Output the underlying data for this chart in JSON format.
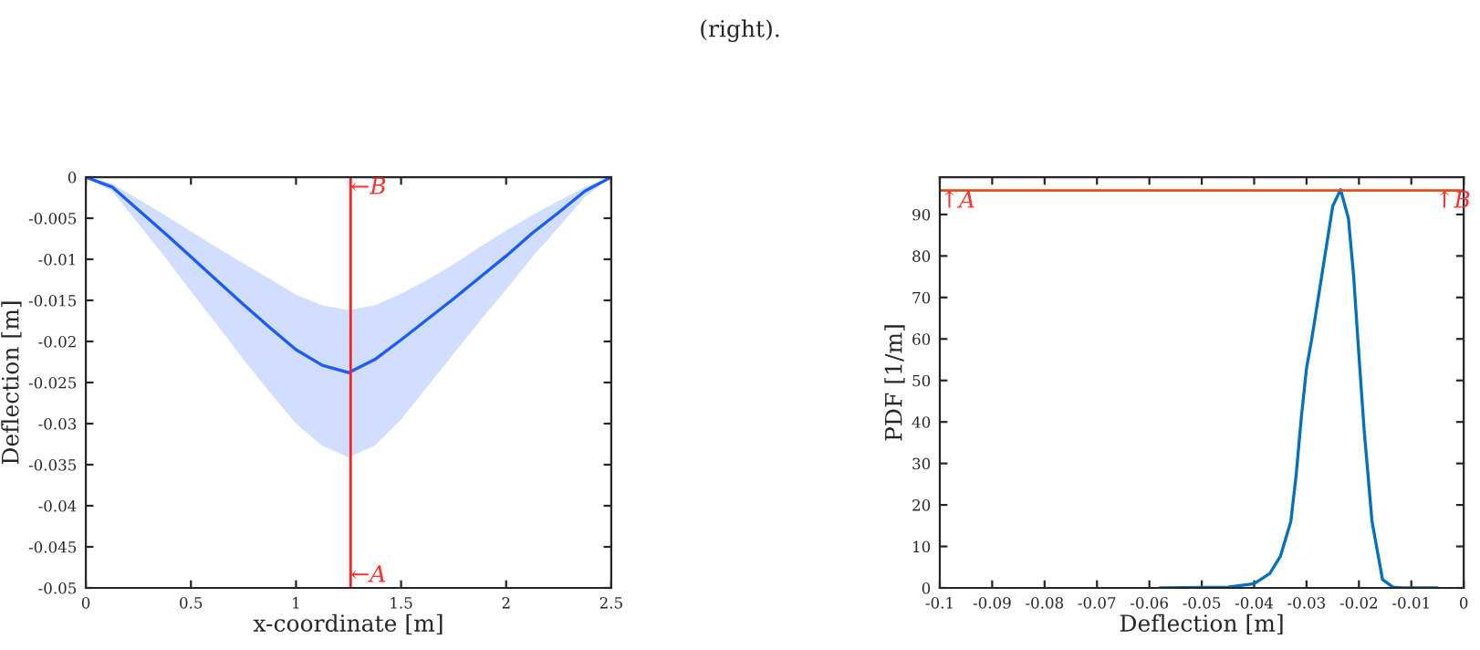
{
  "chart_data": [
    {
      "type": "line",
      "xlabel": "x-coordinate [m]",
      "ylabel": "Deflection [m]",
      "x": [
        0,
        0.125,
        0.25,
        0.375,
        0.5,
        0.625,
        0.75,
        0.875,
        1.0,
        1.125,
        1.25,
        1.375,
        1.5,
        1.625,
        1.75,
        1.875,
        2.0,
        2.125,
        2.25,
        2.375,
        2.5
      ],
      "series": [
        {
          "color": "#1a5cff",
          "values": [
            0,
            -0.0012,
            -0.004,
            -0.0068,
            -0.0097,
            -0.0126,
            -0.0155,
            -0.0183,
            -0.021,
            -0.0229,
            -0.0238,
            -0.0222,
            -0.0198,
            -0.0173,
            -0.0148,
            -0.0122,
            -0.0096,
            -0.0068,
            -0.0043,
            -0.0017,
            0
          ],
          "lower": [
            0,
            -0.0017,
            -0.0057,
            -0.0097,
            -0.0139,
            -0.018,
            -0.0222,
            -0.0262,
            -0.03,
            -0.0327,
            -0.0341,
            -0.0327,
            -0.0295,
            -0.0255,
            -0.0215,
            -0.0175,
            -0.0137,
            -0.0097,
            -0.0061,
            -0.0024,
            0
          ],
          "upper": [
            0,
            -0.0008,
            -0.0027,
            -0.0046,
            -0.0066,
            -0.0086,
            -0.0105,
            -0.0124,
            -0.0143,
            -0.0156,
            -0.0162,
            -0.0156,
            -0.0142,
            -0.0125,
            -0.0106,
            -0.0085,
            -0.0065,
            -0.0046,
            -0.0029,
            -0.0012,
            0
          ]
        }
      ],
      "xlim": [
        0,
        2.5
      ],
      "xticks": [
        0,
        0.5,
        1,
        1.5,
        2,
        2.5
      ],
      "ylim": [
        -0.05,
        0
      ],
      "yticks": [
        -0.05,
        -0.045,
        -0.04,
        -0.035,
        -0.03,
        -0.025,
        -0.02,
        -0.015,
        -0.01,
        -0.005,
        0
      ],
      "ref_lines": [
        {
          "axis": "x",
          "value": 1.26,
          "color": "#ff2020"
        }
      ],
      "annotations": [
        {
          "text": "←B",
          "x": 1.26,
          "y": -0.0013
        },
        {
          "text": "←A",
          "x": 1.26,
          "y": -0.0485
        }
      ]
    },
    {
      "type": "line",
      "xlabel": "Deflection [m]",
      "ylabel": "PDF [1/m]",
      "x": [
        -0.058,
        -0.045,
        -0.04,
        -0.037,
        -0.035,
        -0.033,
        -0.032,
        -0.031,
        -0.03,
        -0.029,
        -0.027,
        -0.025,
        -0.0235,
        -0.022,
        -0.021,
        -0.02,
        -0.019,
        -0.0175,
        -0.0155,
        -0.0135,
        -0.012,
        -0.005
      ],
      "series": [
        {
          "color": "#0072bd",
          "values": [
            0,
            0.2,
            1,
            3.5,
            7.6,
            16,
            27,
            41,
            53,
            60,
            76,
            92,
            96,
            89,
            75,
            56,
            38,
            16,
            2,
            0.2,
            0,
            0
          ]
        }
      ],
      "xlim": [
        -0.1,
        0
      ],
      "xticks": [
        -0.1,
        -0.09,
        -0.08,
        -0.07,
        -0.06,
        -0.05,
        -0.04,
        -0.03,
        -0.02,
        -0.01,
        0
      ],
      "ylim": [
        0,
        99
      ],
      "yticks": [
        0,
        10,
        20,
        30,
        40,
        50,
        60,
        70,
        80,
        90
      ],
      "ref_lines": [
        {
          "axis": "y",
          "value": 95.8,
          "color": "#d95319"
        }
      ],
      "annotations": [
        {
          "text": "↑A",
          "x": -0.1,
          "y": 95.8
        },
        {
          "text": "↑B",
          "x": -0.0055,
          "y": 95.8
        },
        "(right)."
      ]
    }
  ]
}
